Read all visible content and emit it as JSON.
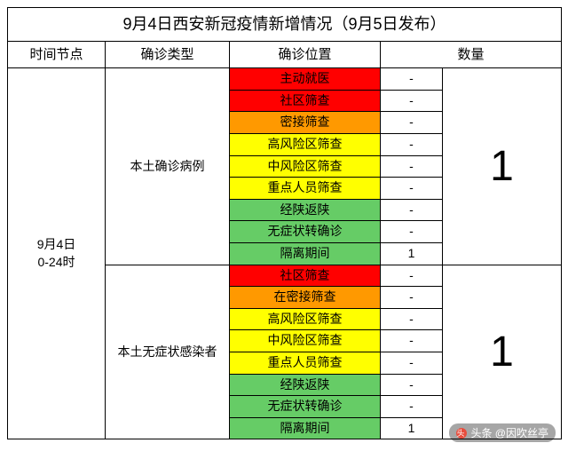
{
  "title": "9月4日西安新冠疫情新增情况（9月5日发布）",
  "headers": {
    "time": "时间节点",
    "type": "确诊类型",
    "location": "确诊位置",
    "count": "数量"
  },
  "time_label": "9月4日\n0-24时",
  "colors": {
    "red": "#ff0000",
    "orange": "#ff9900",
    "yellow": "#ffff00",
    "green": "#66cc66",
    "white": "#ffffff",
    "border": "#000000"
  },
  "groups": [
    {
      "type_label": "本土确诊病例",
      "total": "1",
      "rows": [
        {
          "label": "主动就医",
          "value": "-",
          "color": "#ff0000"
        },
        {
          "label": "社区筛查",
          "value": "-",
          "color": "#ff0000"
        },
        {
          "label": "密接筛查",
          "value": "-",
          "color": "#ff9900"
        },
        {
          "label": "高风险区筛查",
          "value": "-",
          "color": "#ffff00"
        },
        {
          "label": "中风险区筛查",
          "value": "-",
          "color": "#ffff00"
        },
        {
          "label": "重点人员筛查",
          "value": "-",
          "color": "#ffff00"
        },
        {
          "label": "经陕返陕",
          "value": "-",
          "color": "#66cc66"
        },
        {
          "label": "无症状转确诊",
          "value": "-",
          "color": "#66cc66"
        },
        {
          "label": "隔离期间",
          "value": "1",
          "color": "#66cc66"
        }
      ]
    },
    {
      "type_label": "本土无症状感染者",
      "total": "1",
      "rows": [
        {
          "label": "社区筛查",
          "value": "-",
          "color": "#ff0000"
        },
        {
          "label": "在密接筛查",
          "value": "-",
          "color": "#ff9900"
        },
        {
          "label": "高风险区筛查",
          "value": "-",
          "color": "#ffff00"
        },
        {
          "label": "中风险区筛查",
          "value": "-",
          "color": "#ffff00"
        },
        {
          "label": "重点人员筛查",
          "value": "-",
          "color": "#ffff00"
        },
        {
          "label": "经陕返陕",
          "value": "-",
          "color": "#66cc66"
        },
        {
          "label": "无症状转确诊",
          "value": "-",
          "color": "#66cc66"
        },
        {
          "label": "隔离期间",
          "value": "1",
          "color": "#66cc66"
        }
      ]
    }
  ],
  "watermark": "头条 @因吹丝亭"
}
